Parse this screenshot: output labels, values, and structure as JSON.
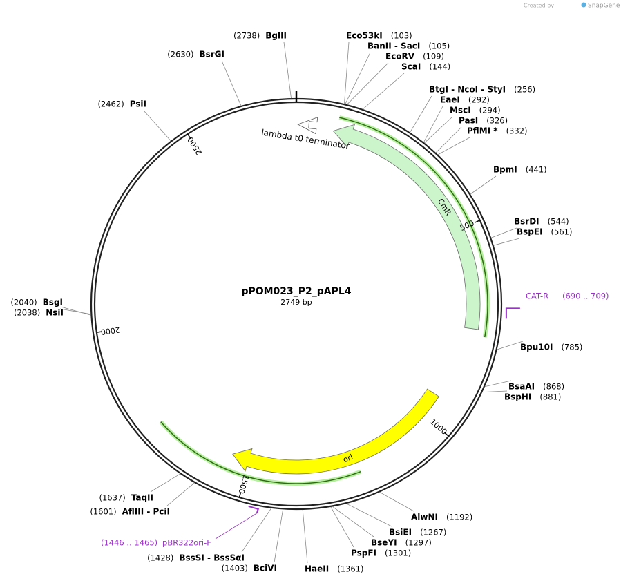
{
  "header": {
    "created_by": "Created by",
    "brand": "SnapGene"
  },
  "map": {
    "name": "pPOM023_P2_pAPL4",
    "length": "2749 bp",
    "ticks": [
      500,
      1000,
      1500,
      2000,
      2500
    ],
    "sites": [
      {
        "name": "Eco53kI",
        "position": "(103)"
      },
      {
        "name": "BanII  - SacI",
        "position": "(105)"
      },
      {
        "name": "EcoRV",
        "position": "(109)"
      },
      {
        "name": "ScaI",
        "position": "(144)"
      },
      {
        "name": "BtgI  - NcoI  - StyI",
        "position": "(256)"
      },
      {
        "name": "EaeI",
        "position": "(292)"
      },
      {
        "name": "MscI",
        "position": "(294)"
      },
      {
        "name": "PasI",
        "position": "(326)"
      },
      {
        "name": "PflMI *",
        "position": "(332)"
      },
      {
        "name": "BpmI",
        "position": "(441)"
      },
      {
        "name": "BsrDI",
        "position": "(544)"
      },
      {
        "name": "BspEI",
        "position": "(561)"
      },
      {
        "name": "Bpu10I",
        "position": "(785)"
      },
      {
        "name": "BsaAI",
        "position": "(868)"
      },
      {
        "name": "BspHI",
        "position": "(881)"
      },
      {
        "name": "AlwNI",
        "position": "(1192)"
      },
      {
        "name": "BsiEI",
        "position": "(1267)"
      },
      {
        "name": "BseYI",
        "position": "(1297)"
      },
      {
        "name": "PspFI",
        "position": "(1301)"
      },
      {
        "name": "HaeII",
        "position": "(1361)"
      },
      {
        "name": "BciVI",
        "position": "(1403)"
      },
      {
        "name": "BssSI  - BssSαI",
        "position": "(1428)"
      },
      {
        "name": "AflIII  - PciI",
        "position": "(1601)"
      },
      {
        "name": "TaqII",
        "position": "(1637)"
      },
      {
        "name": "NsiI",
        "position": "(2038)"
      },
      {
        "name": "BsgI",
        "position": "(2040)"
      },
      {
        "name": "PsiI",
        "position": "(2462)"
      },
      {
        "name": "BsrGI",
        "position": "(2630)"
      },
      {
        "name": "BglII",
        "position": "(2738)"
      }
    ],
    "features": [
      {
        "label": "CmR"
      },
      {
        "label": "ori"
      },
      {
        "label": "lambda t0 terminator"
      }
    ],
    "primers": [
      {
        "name": "CAT-R",
        "range": "(690 .. 709)"
      },
      {
        "name": "pBR322ori-F",
        "range": "(1446 .. 1465)"
      }
    ]
  }
}
